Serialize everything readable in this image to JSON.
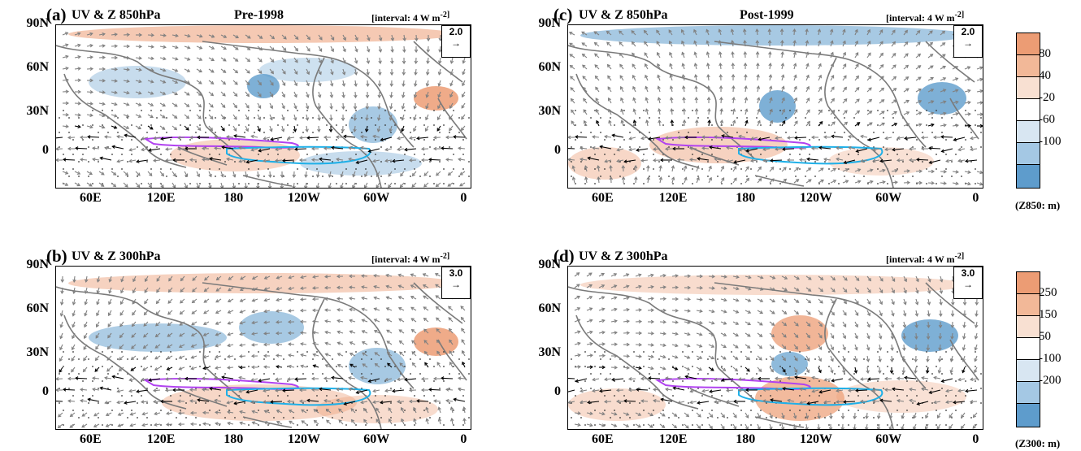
{
  "panels": {
    "a": {
      "letter": "(a)",
      "title": "UV & Z 850hPa",
      "era": "Pre-1998",
      "interval": "[interval: 4 W m",
      "ref": "2.0"
    },
    "b": {
      "letter": "(b)",
      "title": "UV & Z 300hPa",
      "era": "",
      "interval": "[interval: 4 W m",
      "ref": "3.0"
    },
    "c": {
      "letter": "(c)",
      "title": "UV & Z 850hPa",
      "era": "Post-1999",
      "interval": "[interval: 4 W m",
      "ref": "2.0"
    },
    "d": {
      "letter": "(d)",
      "title": "UV & Z 300hPa",
      "era": "",
      "interval": "[interval: 4 W m",
      "ref": "3.0"
    }
  },
  "interval_suffix": "-2]",
  "lat_labels": [
    "90N",
    "60N",
    "30N",
    "0"
  ],
  "lon_labels": [
    "60E",
    "120E",
    "180",
    "120W",
    "60W",
    "0"
  ],
  "colorbar_z850": {
    "labels": [
      "80",
      "40",
      "-20",
      "-60",
      "-100"
    ],
    "unit": "(Z850: m)"
  },
  "colorbar_z300": {
    "labels": [
      "250",
      "150",
      "50",
      "-100",
      "-200"
    ],
    "unit": "(Z300: m)"
  },
  "colors": {
    "positive": "#ec9c74",
    "negative": "#5e9ccc",
    "contour_positive": "#b142f0",
    "contour_negative": "#1fb0e8",
    "coast": "#7a7a7a",
    "vector_sig": "#000000",
    "vector": "#808080"
  }
}
